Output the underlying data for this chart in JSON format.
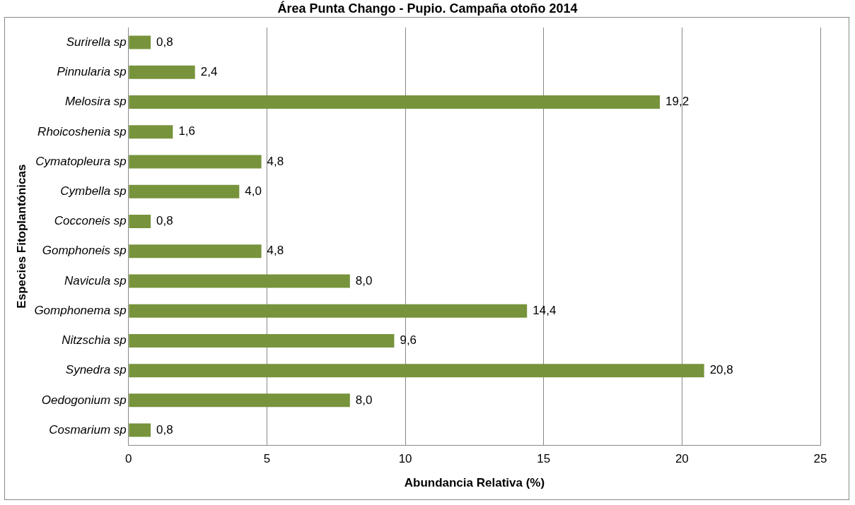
{
  "chart_data": {
    "type": "bar",
    "orientation": "horizontal",
    "title": "Área Punta Chango - Pupio. Campaña otoño 2014",
    "xlabel": "Abundancia Relativa (%)",
    "ylabel": "Especies Fitoplantónicas",
    "categories": [
      "Surirella sp",
      "Pinnularia sp",
      "Melosira sp",
      "Rhoicoshenia sp",
      "Cymatopleura sp",
      "Cymbella sp",
      "Cocconeis sp",
      "Gomphoneis sp",
      "Navicula sp",
      "Gomphonema sp",
      "Nitzschia sp",
      "Synedra sp",
      "Oedogonium sp",
      "Cosmarium sp"
    ],
    "values": [
      0.8,
      2.4,
      19.2,
      1.6,
      4.8,
      4.0,
      0.8,
      4.8,
      8.0,
      14.4,
      9.6,
      20.8,
      8.0,
      0.8
    ],
    "value_labels": [
      "0,8",
      "2,4",
      "19,2",
      "1,6",
      "4,8",
      "4,0",
      "0,8",
      "4,8",
      "8,0",
      "14,4",
      "9,6",
      "20,8",
      "8,0",
      "0,8"
    ],
    "color": "#77933c",
    "xlim": [
      0,
      25
    ],
    "xticks": [
      0,
      5,
      10,
      15,
      20,
      25
    ],
    "grid": "x",
    "legend": false
  }
}
